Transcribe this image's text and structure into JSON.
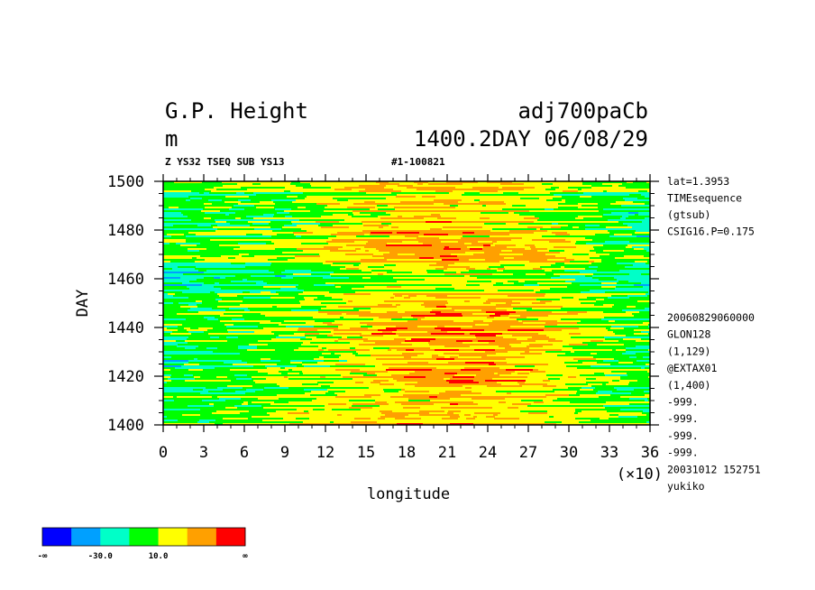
{
  "header": {
    "title_left": "G.P. Height",
    "title_right": "adj700paCb",
    "unit": "m",
    "date_label": "1400.2DAY 06/08/29",
    "sub_left": "Z YS32 TSEQ SUB YS13",
    "sub_right": "#1-100821"
  },
  "info_top": [
    "lat=1.3953",
    "TIMEsequence",
    "(gtsub)",
    "CSIG16.P=0.175"
  ],
  "info_bottom": [
    "20060829060000",
    "GLON128",
    "(1,129)",
    "@EXTAX01",
    "(1,400)",
    "-999.",
    "-999.",
    "-999.",
    "-999.",
    "20031012 152751",
    "yukiko"
  ],
  "colors": {
    "bands": [
      "#0000ff",
      "#00a0ff",
      "#00ffc8",
      "#00ff00",
      "#ffff00",
      "#ffa000",
      "#ff0000"
    ]
  },
  "legend": {
    "labels": [
      "-∞",
      "-30.0",
      "10.0",
      "∞"
    ]
  },
  "chart_data": {
    "type": "heatmap",
    "xlabel": "longitude",
    "ylabel": "DAY",
    "x_multiplier_label": "(×10)",
    "xlim": [
      0,
      36
    ],
    "ylim": [
      1400,
      1500
    ],
    "x_ticks": [
      "0",
      "3",
      "6",
      "9",
      "12",
      "15",
      "18",
      "21",
      "24",
      "27",
      "30",
      "33",
      "36"
    ],
    "y_ticks": [
      "1400",
      "1420",
      "1440",
      "1460",
      "1480",
      "1500"
    ],
    "levels": [
      -50,
      -30,
      -10,
      10,
      30,
      50
    ],
    "field_rows": [
      {
        "day": 1400,
        "values": [
          10,
          5,
          10,
          20,
          25,
          30,
          35,
          35,
          30,
          25,
          20,
          10,
          5
        ]
      },
      {
        "day": 1410,
        "values": [
          0,
          0,
          5,
          10,
          15,
          25,
          30,
          35,
          30,
          25,
          15,
          5,
          0
        ]
      },
      {
        "day": 1420,
        "values": [
          -5,
          -5,
          0,
          5,
          10,
          20,
          30,
          40,
          35,
          25,
          15,
          0,
          -5
        ]
      },
      {
        "day": 1430,
        "values": [
          -10,
          -5,
          -5,
          0,
          10,
          20,
          30,
          35,
          35,
          30,
          20,
          5,
          -5
        ]
      },
      {
        "day": 1440,
        "values": [
          -5,
          0,
          0,
          5,
          15,
          25,
          35,
          40,
          35,
          30,
          20,
          5,
          -5
        ]
      },
      {
        "day": 1450,
        "values": [
          -10,
          -5,
          0,
          5,
          10,
          20,
          25,
          30,
          30,
          25,
          15,
          0,
          -10
        ]
      },
      {
        "day": 1460,
        "values": [
          -20,
          -15,
          -10,
          -5,
          0,
          10,
          15,
          15,
          10,
          5,
          0,
          -10,
          -20
        ]
      },
      {
        "day": 1470,
        "values": [
          -5,
          -5,
          0,
          5,
          15,
          25,
          30,
          35,
          30,
          25,
          15,
          0,
          -10
        ]
      },
      {
        "day": 1480,
        "values": [
          0,
          0,
          5,
          10,
          20,
          30,
          35,
          35,
          30,
          25,
          15,
          0,
          -15
        ]
      },
      {
        "day": 1490,
        "values": [
          -5,
          0,
          0,
          5,
          15,
          25,
          30,
          30,
          30,
          20,
          10,
          0,
          -10
        ]
      },
      {
        "day": 1500,
        "values": [
          0,
          5,
          10,
          10,
          15,
          20,
          25,
          25,
          20,
          15,
          10,
          5,
          0
        ]
      }
    ]
  }
}
